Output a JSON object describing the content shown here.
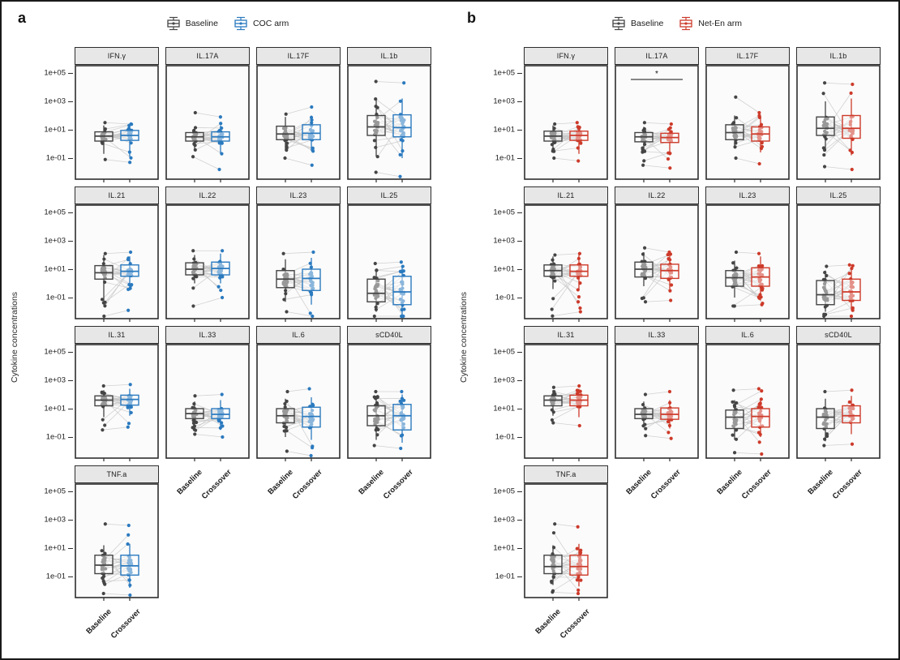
{
  "chart_data": [
    {
      "type": "paired-boxplot-grid",
      "panel_label": "a",
      "ylabel": "Cytokine concentrations",
      "legend": [
        {
          "label": "Baseline",
          "color": "#454545"
        },
        {
          "label": "COC arm",
          "color": "#2b7abf"
        }
      ],
      "categories": [
        "Baseline",
        "Crossover"
      ],
      "yscale": "log10",
      "yticks": [
        "1e+05",
        "1e+03",
        "1e+01",
        "1e-01"
      ],
      "ytick_log10": [
        5,
        3,
        1,
        -1
      ],
      "ylim_log10": [
        -2.5,
        5.6
      ],
      "n_pairs": 26,
      "baseline_color": "#454545",
      "arm_color": "#2b7abf",
      "line_color": "#c7c7c7",
      "stats_format": [
        "whisker_low",
        "q1",
        "median",
        "q3",
        "whisker_high",
        "points_min",
        "points_max"
      ],
      "stats_units": "log10 of concentration",
      "facets": [
        {
          "name": "IFN.γ",
          "sig": null,
          "baseline": [
            -0.7,
            0.2,
            0.55,
            0.85,
            1.3,
            -1.1,
            1.5
          ],
          "crossover": [
            -0.9,
            0.25,
            0.6,
            0.95,
            1.4,
            -1.3,
            1.4
          ]
        },
        {
          "name": "IL.17A",
          "sig": null,
          "baseline": [
            -0.5,
            0.2,
            0.5,
            0.8,
            1.2,
            -0.9,
            2.2
          ],
          "crossover": [
            -0.7,
            0.2,
            0.5,
            0.85,
            1.3,
            -1.8,
            1.9
          ]
        },
        {
          "name": "IL.17F",
          "sig": null,
          "baseline": [
            -0.4,
            0.3,
            0.7,
            1.25,
            1.9,
            -1.0,
            2.1
          ],
          "crossover": [
            -0.5,
            0.3,
            0.75,
            1.35,
            2.0,
            -1.5,
            2.6
          ]
        },
        {
          "name": "IL.1b",
          "sig": null,
          "baseline": [
            -0.9,
            0.6,
            1.2,
            2.0,
            3.1,
            -2.0,
            4.4
          ],
          "crossover": [
            -1.0,
            0.5,
            1.15,
            2.05,
            3.2,
            -2.3,
            4.3
          ]
        },
        {
          "name": "IL.21",
          "sig": null,
          "baseline": [
            -1.5,
            0.3,
            0.75,
            1.25,
            2.0,
            -2.4,
            2.1
          ],
          "crossover": [
            -0.5,
            0.5,
            0.85,
            1.3,
            1.9,
            -1.9,
            2.2
          ]
        },
        {
          "name": "IL.22",
          "sig": null,
          "baseline": [
            0.0,
            0.6,
            1.0,
            1.45,
            2.0,
            -1.6,
            2.3
          ],
          "crossover": [
            0.0,
            0.6,
            1.05,
            1.5,
            2.1,
            -1.0,
            2.3
          ]
        },
        {
          "name": "IL.23",
          "sig": null,
          "baseline": [
            -1.3,
            -0.3,
            0.3,
            0.9,
            1.7,
            -2.0,
            2.1
          ],
          "crossover": [
            -1.5,
            -0.5,
            0.35,
            1.0,
            1.8,
            -2.5,
            2.2
          ]
        },
        {
          "name": "IL.25",
          "sig": null,
          "baseline": [
            -2.0,
            -1.3,
            -0.7,
            0.3,
            1.0,
            -2.4,
            1.4
          ],
          "crossover": [
            -2.2,
            -1.5,
            -0.6,
            0.5,
            1.2,
            -2.6,
            1.5
          ]
        },
        {
          "name": "IL.31",
          "sig": null,
          "baseline": [
            0.4,
            1.2,
            1.6,
            1.9,
            2.3,
            -0.5,
            2.6
          ],
          "crossover": [
            0.5,
            1.25,
            1.65,
            1.95,
            2.4,
            -0.3,
            2.7
          ]
        },
        {
          "name": "IL.33",
          "sig": null,
          "baseline": [
            -0.4,
            0.3,
            0.65,
            1.0,
            1.5,
            -0.8,
            1.9
          ],
          "crossover": [
            -0.5,
            0.3,
            0.6,
            1.0,
            1.6,
            -1.0,
            2.0
          ]
        },
        {
          "name": "IL.6",
          "sig": null,
          "baseline": [
            -1.0,
            0.0,
            0.5,
            1.0,
            1.7,
            -2.0,
            2.2
          ],
          "crossover": [
            -1.2,
            -0.3,
            0.45,
            1.1,
            1.8,
            -2.4,
            2.4
          ]
        },
        {
          "name": "sCD40L",
          "sig": null,
          "baseline": [
            -1.2,
            -0.2,
            0.5,
            1.2,
            1.9,
            -1.6,
            2.2
          ],
          "crossover": [
            -1.4,
            -0.5,
            0.5,
            1.3,
            2.0,
            -1.8,
            2.2
          ]
        },
        {
          "name": "TNF.a",
          "sig": null,
          "baseline": [
            -1.6,
            -0.8,
            -0.2,
            0.5,
            1.2,
            -2.2,
            2.7
          ],
          "crossover": [
            -1.8,
            -0.9,
            -0.25,
            0.5,
            1.3,
            -2.4,
            2.6
          ]
        }
      ]
    },
    {
      "type": "paired-boxplot-grid",
      "panel_label": "b",
      "ylabel": "Cytokine concentrations",
      "legend": [
        {
          "label": "Baseline",
          "color": "#454545"
        },
        {
          "label": "Net-En arm",
          "color": "#cd3a2a"
        }
      ],
      "categories": [
        "Baseline",
        "Crossover"
      ],
      "yscale": "log10",
      "yticks": [
        "1e+05",
        "1e+03",
        "1e+01",
        "1e-01"
      ],
      "ytick_log10": [
        5,
        3,
        1,
        -1
      ],
      "ylim_log10": [
        -2.5,
        5.6
      ],
      "n_pairs": 26,
      "baseline_color": "#454545",
      "arm_color": "#cd3a2a",
      "line_color": "#c7c7c7",
      "stats_format": [
        "whisker_low",
        "q1",
        "median",
        "q3",
        "whisker_high",
        "points_min",
        "points_max"
      ],
      "stats_units": "log10 of concentration",
      "facets": [
        {
          "name": "IFN.γ",
          "sig": null,
          "baseline": [
            -0.6,
            0.2,
            0.55,
            0.9,
            1.3,
            -1.0,
            1.4
          ],
          "crossover": [
            -0.7,
            0.25,
            0.6,
            0.9,
            1.3,
            -1.2,
            1.5
          ]
        },
        {
          "name": "IL.17A",
          "sig": "*",
          "baseline": [
            -0.6,
            0.15,
            0.5,
            0.8,
            1.2,
            -1.5,
            1.5
          ],
          "crossover": [
            -0.8,
            0.1,
            0.45,
            0.75,
            1.2,
            -1.7,
            1.4
          ]
        },
        {
          "name": "IL.17F",
          "sig": null,
          "baseline": [
            -0.3,
            0.3,
            0.8,
            1.35,
            2.0,
            -1.0,
            3.3
          ],
          "crossover": [
            -0.6,
            0.2,
            0.7,
            1.2,
            1.9,
            -1.4,
            2.2
          ]
        },
        {
          "name": "IL.1b",
          "sig": null,
          "baseline": [
            -0.5,
            0.6,
            1.1,
            1.9,
            3.0,
            -1.6,
            4.3
          ],
          "crossover": [
            -0.8,
            0.4,
            1.1,
            2.0,
            3.2,
            -1.8,
            4.2
          ]
        },
        {
          "name": "IL.21",
          "sig": null,
          "baseline": [
            -0.4,
            0.5,
            0.9,
            1.3,
            1.9,
            -2.3,
            2.0
          ],
          "crossover": [
            -0.5,
            0.5,
            0.85,
            1.3,
            2.0,
            -2.0,
            2.1
          ]
        },
        {
          "name": "IL.22",
          "sig": null,
          "baseline": [
            -0.2,
            0.45,
            1.0,
            1.5,
            2.2,
            -1.3,
            2.5
          ],
          "crossover": [
            -0.4,
            0.35,
            0.9,
            1.35,
            2.1,
            -1.2,
            2.2
          ]
        },
        {
          "name": "IL.23",
          "sig": null,
          "baseline": [
            -1.0,
            -0.2,
            0.4,
            0.9,
            1.6,
            -1.6,
            2.2
          ],
          "crossover": [
            -1.2,
            -0.2,
            0.45,
            1.1,
            1.9,
            -1.5,
            2.1
          ]
        },
        {
          "name": "IL.25",
          "sig": null,
          "baseline": [
            -2.0,
            -1.5,
            -0.8,
            0.2,
            0.9,
            -2.5,
            1.2
          ],
          "crossover": [
            -1.9,
            -1.2,
            -0.6,
            0.3,
            1.0,
            -2.4,
            1.3
          ]
        },
        {
          "name": "IL.31",
          "sig": null,
          "baseline": [
            0.5,
            1.2,
            1.6,
            1.9,
            2.3,
            0.0,
            2.5
          ],
          "crossover": [
            0.4,
            1.2,
            1.6,
            1.95,
            2.4,
            -0.2,
            2.6
          ]
        },
        {
          "name": "IL.33",
          "sig": null,
          "baseline": [
            -0.3,
            0.3,
            0.6,
            1.0,
            1.5,
            -0.9,
            2.0
          ],
          "crossover": [
            -0.4,
            0.25,
            0.6,
            1.05,
            1.6,
            -1.1,
            2.2
          ]
        },
        {
          "name": "IL.6",
          "sig": null,
          "baseline": [
            -1.2,
            -0.4,
            0.4,
            0.9,
            1.6,
            -2.1,
            2.3
          ],
          "crossover": [
            -1.0,
            -0.3,
            0.45,
            1.0,
            1.7,
            -2.2,
            2.4
          ]
        },
        {
          "name": "sCD40L",
          "sig": null,
          "baseline": [
            -1.3,
            -0.4,
            0.4,
            1.0,
            1.7,
            -1.6,
            2.2
          ],
          "crossover": [
            -0.8,
            0.0,
            0.5,
            1.2,
            1.9,
            -1.5,
            2.3
          ]
        },
        {
          "name": "TNF.a",
          "sig": null,
          "baseline": [
            -1.6,
            -0.8,
            -0.3,
            0.5,
            1.2,
            -2.1,
            2.7
          ],
          "crossover": [
            -1.7,
            -0.9,
            -0.3,
            0.5,
            1.3,
            -2.2,
            2.5
          ]
        }
      ]
    }
  ]
}
